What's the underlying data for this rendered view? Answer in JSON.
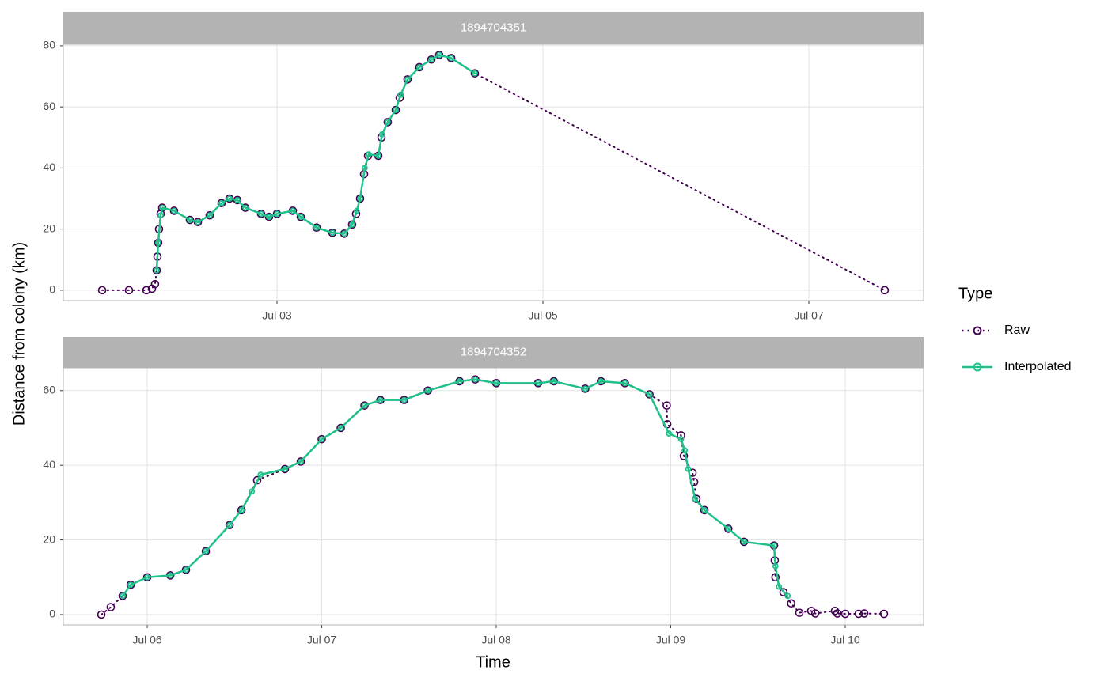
{
  "figure": {
    "ylabel": "Distance from colony (km)",
    "xlabel": "Time",
    "legend_title": "Type"
  },
  "chart_data": [
    {
      "type": "line",
      "title": "1894704351",
      "xlim": [
        1.393,
        7.863
      ],
      "ylim": [
        -3.4,
        80.5
      ],
      "xticks": [
        {
          "value": 3,
          "label": "Jul 03"
        },
        {
          "value": 5,
          "label": "Jul 05"
        },
        {
          "value": 7,
          "label": "Jul 07"
        }
      ],
      "yticks": [
        0,
        20,
        40,
        60,
        80
      ],
      "grid": true,
      "series": [
        {
          "name": "Raw",
          "color": "#440154",
          "linestyle": "dotted",
          "x": [
            1.685,
            1.887,
            2.018,
            2.06,
            2.083,
            2.095,
            2.101,
            2.107,
            2.113,
            2.125,
            2.137,
            2.226,
            2.345,
            2.405,
            2.494,
            2.583,
            2.643,
            2.702,
            2.762,
            2.881,
            2.94,
            3.0,
            3.119,
            3.179,
            3.298,
            3.417,
            3.506,
            3.565,
            3.595,
            3.625,
            3.655,
            3.685,
            3.762,
            3.786,
            3.833,
            3.893,
            3.923,
            3.982,
            4.071,
            4.161,
            4.22,
            4.31,
            4.488,
            7.571
          ],
          "values": [
            0,
            0,
            0,
            0.5,
            2,
            6.5,
            11,
            15.5,
            20,
            25,
            27,
            26,
            23,
            22.3,
            24.5,
            28.5,
            30,
            29.5,
            27,
            25,
            24,
            25,
            26,
            24,
            20.5,
            18.8,
            18.5,
            21.5,
            25,
            30,
            38,
            44,
            44,
            50,
            55,
            59,
            63,
            69,
            73,
            75.5,
            77,
            76,
            71,
            0
          ]
        },
        {
          "name": "Interpolated",
          "color": "#21C08A",
          "linestyle": "solid",
          "x": [
            2.095,
            2.107,
            2.125,
            2.14,
            2.226,
            2.345,
            2.405,
            2.494,
            2.583,
            2.643,
            2.702,
            2.762,
            2.881,
            2.94,
            3.0,
            3.119,
            3.179,
            3.298,
            3.417,
            3.506,
            3.565,
            3.6,
            3.625,
            3.66,
            3.69,
            3.762,
            3.79,
            3.833,
            3.893,
            3.93,
            3.982,
            4.071,
            4.161,
            4.22,
            4.31,
            4.488
          ],
          "values": [
            6.5,
            15.5,
            24.5,
            27,
            26,
            23,
            22.3,
            24.5,
            28.5,
            30,
            29.5,
            27,
            25,
            24,
            25,
            26,
            24,
            20.5,
            18.8,
            18.5,
            21.5,
            26,
            30,
            40,
            44.5,
            44,
            51,
            55,
            59,
            64,
            69,
            73,
            75.5,
            77,
            76,
            71
          ]
        }
      ]
    },
    {
      "type": "line",
      "title": "1894704352",
      "xlim": [
        5.519,
        10.449
      ],
      "ylim": [
        -2.76,
        66.1
      ],
      "xticks": [
        {
          "value": 6,
          "label": "Jul 06"
        },
        {
          "value": 7,
          "label": "Jul 07"
        },
        {
          "value": 8,
          "label": "Jul 08"
        },
        {
          "value": 9,
          "label": "Jul 09"
        },
        {
          "value": 10,
          "label": "Jul 10"
        }
      ],
      "yticks": [
        0,
        20,
        40,
        60
      ],
      "grid": true,
      "series": [
        {
          "color": "#440154",
          "linestyle": "dotted",
          "x": [
            5.737,
            5.791,
            5.859,
            5.905,
            6.0,
            6.132,
            6.222,
            6.336,
            6.472,
            6.54,
            6.63,
            6.789,
            6.88,
            7.0,
            7.109,
            7.245,
            7.336,
            7.472,
            7.608,
            7.79,
            7.88,
            8.0,
            8.24,
            8.33,
            8.51,
            8.6,
            8.737,
            8.878,
            8.977,
            8.98,
            9.059,
            9.075,
            9.125,
            9.134,
            9.147,
            9.193,
            9.33,
            9.42,
            9.592,
            9.596,
            9.6,
            9.646,
            9.69,
            9.737,
            9.805,
            9.828,
            9.941,
            9.955,
            10.0,
            10.077,
            10.109,
            10.222
          ],
          "values": [
            0,
            2,
            5,
            8,
            10,
            10.5,
            12,
            17,
            24,
            28,
            36,
            39,
            41,
            47,
            50,
            56,
            57.5,
            57.5,
            60,
            62.5,
            63,
            62,
            62,
            62.5,
            60.5,
            62.5,
            62,
            59,
            56,
            51,
            48,
            42.5,
            38,
            35.5,
            31,
            28,
            23,
            19.5,
            18.5,
            14.5,
            10,
            6,
            3,
            0.5,
            1,
            0.3,
            1,
            0.3,
            0.2,
            0.2,
            0.3,
            0.2
          ]
        },
        {
          "color": "#21C08A",
          "linestyle": "solid",
          "x": [
            5.86,
            5.905,
            6.0,
            6.132,
            6.222,
            6.336,
            6.472,
            6.54,
            6.6,
            6.65,
            6.789,
            6.88,
            7.0,
            7.109,
            7.245,
            7.336,
            7.472,
            7.608,
            7.79,
            7.88,
            8.0,
            8.24,
            8.33,
            8.51,
            8.6,
            8.737,
            8.878,
            8.99,
            9.059,
            9.08,
            9.1,
            9.14,
            9.193,
            9.33,
            9.42,
            9.592,
            9.6,
            9.62,
            9.67
          ],
          "values": [
            5,
            8,
            10,
            10.5,
            12,
            17,
            24,
            28,
            33,
            37.5,
            39,
            41,
            47,
            50,
            56,
            57.5,
            57.5,
            60,
            62.5,
            63,
            62,
            62,
            62.5,
            60.5,
            62.5,
            62,
            59,
            48.5,
            47,
            44,
            39,
            31,
            28,
            23,
            19.5,
            18.5,
            13,
            7.5,
            5
          ]
        }
      ]
    }
  ]
}
